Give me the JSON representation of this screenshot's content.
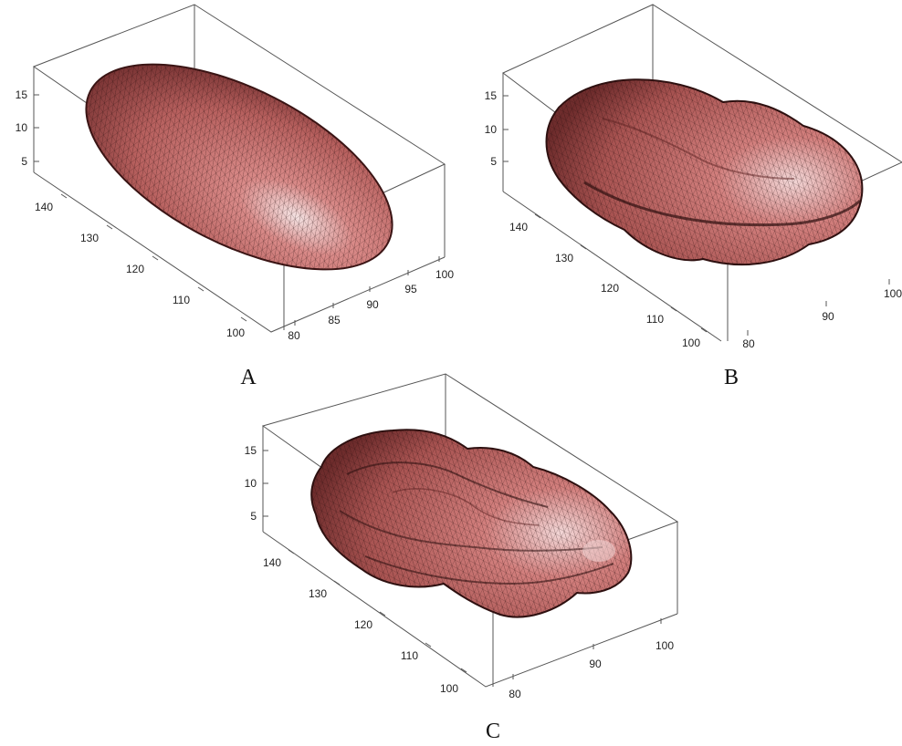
{
  "colors": {
    "surface": "#c0605e",
    "highlight": "#f2d8d8",
    "mesh": "#2a0e0e",
    "box": "#555555"
  },
  "panels": [
    {
      "label": "A",
      "shape": "smooth-ellipsoid",
      "z_ticks": [
        "15",
        "10",
        "5"
      ],
      "y_ticks": [
        "140",
        "130",
        "120",
        "110",
        "100"
      ],
      "x_ticks": [
        "80",
        "85",
        "90",
        "95",
        "100"
      ]
    },
    {
      "label": "B",
      "shape": "peanut-surface",
      "z_ticks": [
        "15",
        "10",
        "5"
      ],
      "y_ticks": [
        "140",
        "130",
        "120",
        "110",
        "100"
      ],
      "x_ticks": [
        "80",
        "90",
        "100"
      ]
    },
    {
      "label": "C",
      "shape": "lumpy-surface",
      "z_ticks": [
        "15",
        "10",
        "5"
      ],
      "y_ticks": [
        "140",
        "130",
        "120",
        "110",
        "100"
      ],
      "x_ticks": [
        "80",
        "90",
        "100"
      ]
    }
  ]
}
